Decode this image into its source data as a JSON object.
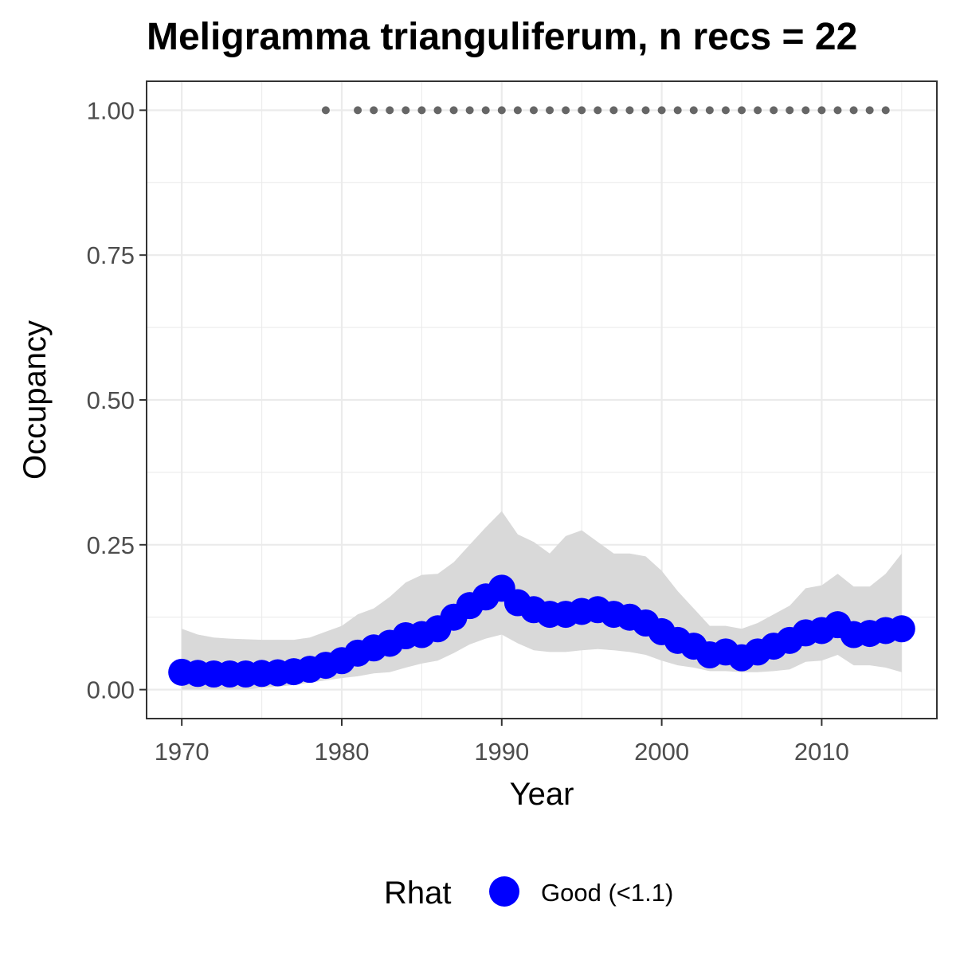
{
  "chart_data": {
    "type": "line",
    "title": "Meligramma trianguliferum, n recs = 22",
    "xlabel": "Year",
    "ylabel": "Occupancy",
    "xlim": [
      1967.8,
      2017.2
    ],
    "ylim": [
      -0.05,
      1.05
    ],
    "x_ticks": [
      1970,
      1980,
      1990,
      2000,
      2010
    ],
    "x_tick_labels": [
      "1970",
      "1980",
      "1990",
      "2000",
      "2010"
    ],
    "y_ticks": [
      0,
      0.25,
      0.5,
      0.75,
      1.0
    ],
    "y_tick_labels": [
      "0.00",
      "0.25",
      "0.50",
      "0.75",
      "1.00"
    ],
    "grid": true,
    "years": [
      1970,
      1971,
      1972,
      1973,
      1974,
      1975,
      1976,
      1977,
      1978,
      1979,
      1980,
      1981,
      1982,
      1983,
      1984,
      1985,
      1986,
      1987,
      1988,
      1989,
      1990,
      1991,
      1992,
      1993,
      1994,
      1995,
      1996,
      1997,
      1998,
      1999,
      2000,
      2001,
      2002,
      2003,
      2004,
      2005,
      2006,
      2007,
      2008,
      2009,
      2010,
      2011,
      2012,
      2013,
      2014,
      2015
    ],
    "occupancy_mean": [
      0.03,
      0.028,
      0.027,
      0.027,
      0.027,
      0.028,
      0.029,
      0.031,
      0.035,
      0.042,
      0.05,
      0.063,
      0.072,
      0.08,
      0.093,
      0.095,
      0.105,
      0.125,
      0.145,
      0.16,
      0.175,
      0.15,
      0.138,
      0.13,
      0.13,
      0.135,
      0.138,
      0.13,
      0.125,
      0.115,
      0.1,
      0.085,
      0.075,
      0.06,
      0.065,
      0.055,
      0.065,
      0.075,
      0.085,
      0.098,
      0.102,
      0.112,
      0.095,
      0.097,
      0.102,
      0.105
    ],
    "ci_upper": [
      0.105,
      0.095,
      0.09,
      0.088,
      0.087,
      0.086,
      0.086,
      0.086,
      0.09,
      0.1,
      0.11,
      0.13,
      0.14,
      0.16,
      0.185,
      0.198,
      0.2,
      0.22,
      0.25,
      0.28,
      0.308,
      0.268,
      0.255,
      0.235,
      0.265,
      0.275,
      0.255,
      0.235,
      0.235,
      0.23,
      0.205,
      0.17,
      0.14,
      0.11,
      0.11,
      0.105,
      0.115,
      0.13,
      0.145,
      0.175,
      0.18,
      0.2,
      0.178,
      0.178,
      0.2,
      0.235
    ],
    "ci_lower": [
      0.0,
      0.0,
      0.0,
      0.0,
      0.0,
      0.003,
      0.005,
      0.008,
      0.012,
      0.016,
      0.02,
      0.023,
      0.028,
      0.03,
      0.038,
      0.045,
      0.05,
      0.063,
      0.078,
      0.088,
      0.095,
      0.08,
      0.068,
      0.065,
      0.065,
      0.068,
      0.07,
      0.068,
      0.065,
      0.06,
      0.05,
      0.042,
      0.038,
      0.032,
      0.032,
      0.03,
      0.03,
      0.032,
      0.035,
      0.048,
      0.05,
      0.06,
      0.042,
      0.042,
      0.038,
      0.03
    ],
    "record_years": [
      1979,
      1981,
      1982,
      1983,
      1984,
      1985,
      1986,
      1987,
      1988,
      1989,
      1990,
      1991,
      1992,
      1993,
      1994,
      1995,
      1996,
      1997,
      1998,
      1999,
      2000,
      2001,
      2002,
      2003,
      2004,
      2005,
      2006,
      2007,
      2008,
      2009,
      2010,
      2011,
      2012,
      2013,
      2014
    ],
    "record_value": 1.0,
    "legend": {
      "title": "Rhat",
      "entries": [
        "Good (<1.1)"
      ],
      "position": "bottom"
    },
    "colors": {
      "points": "#0000ff",
      "ribbon": "#d9d9d9",
      "records": "#666666",
      "grid": "#ebebeb",
      "border": "#333333"
    }
  }
}
